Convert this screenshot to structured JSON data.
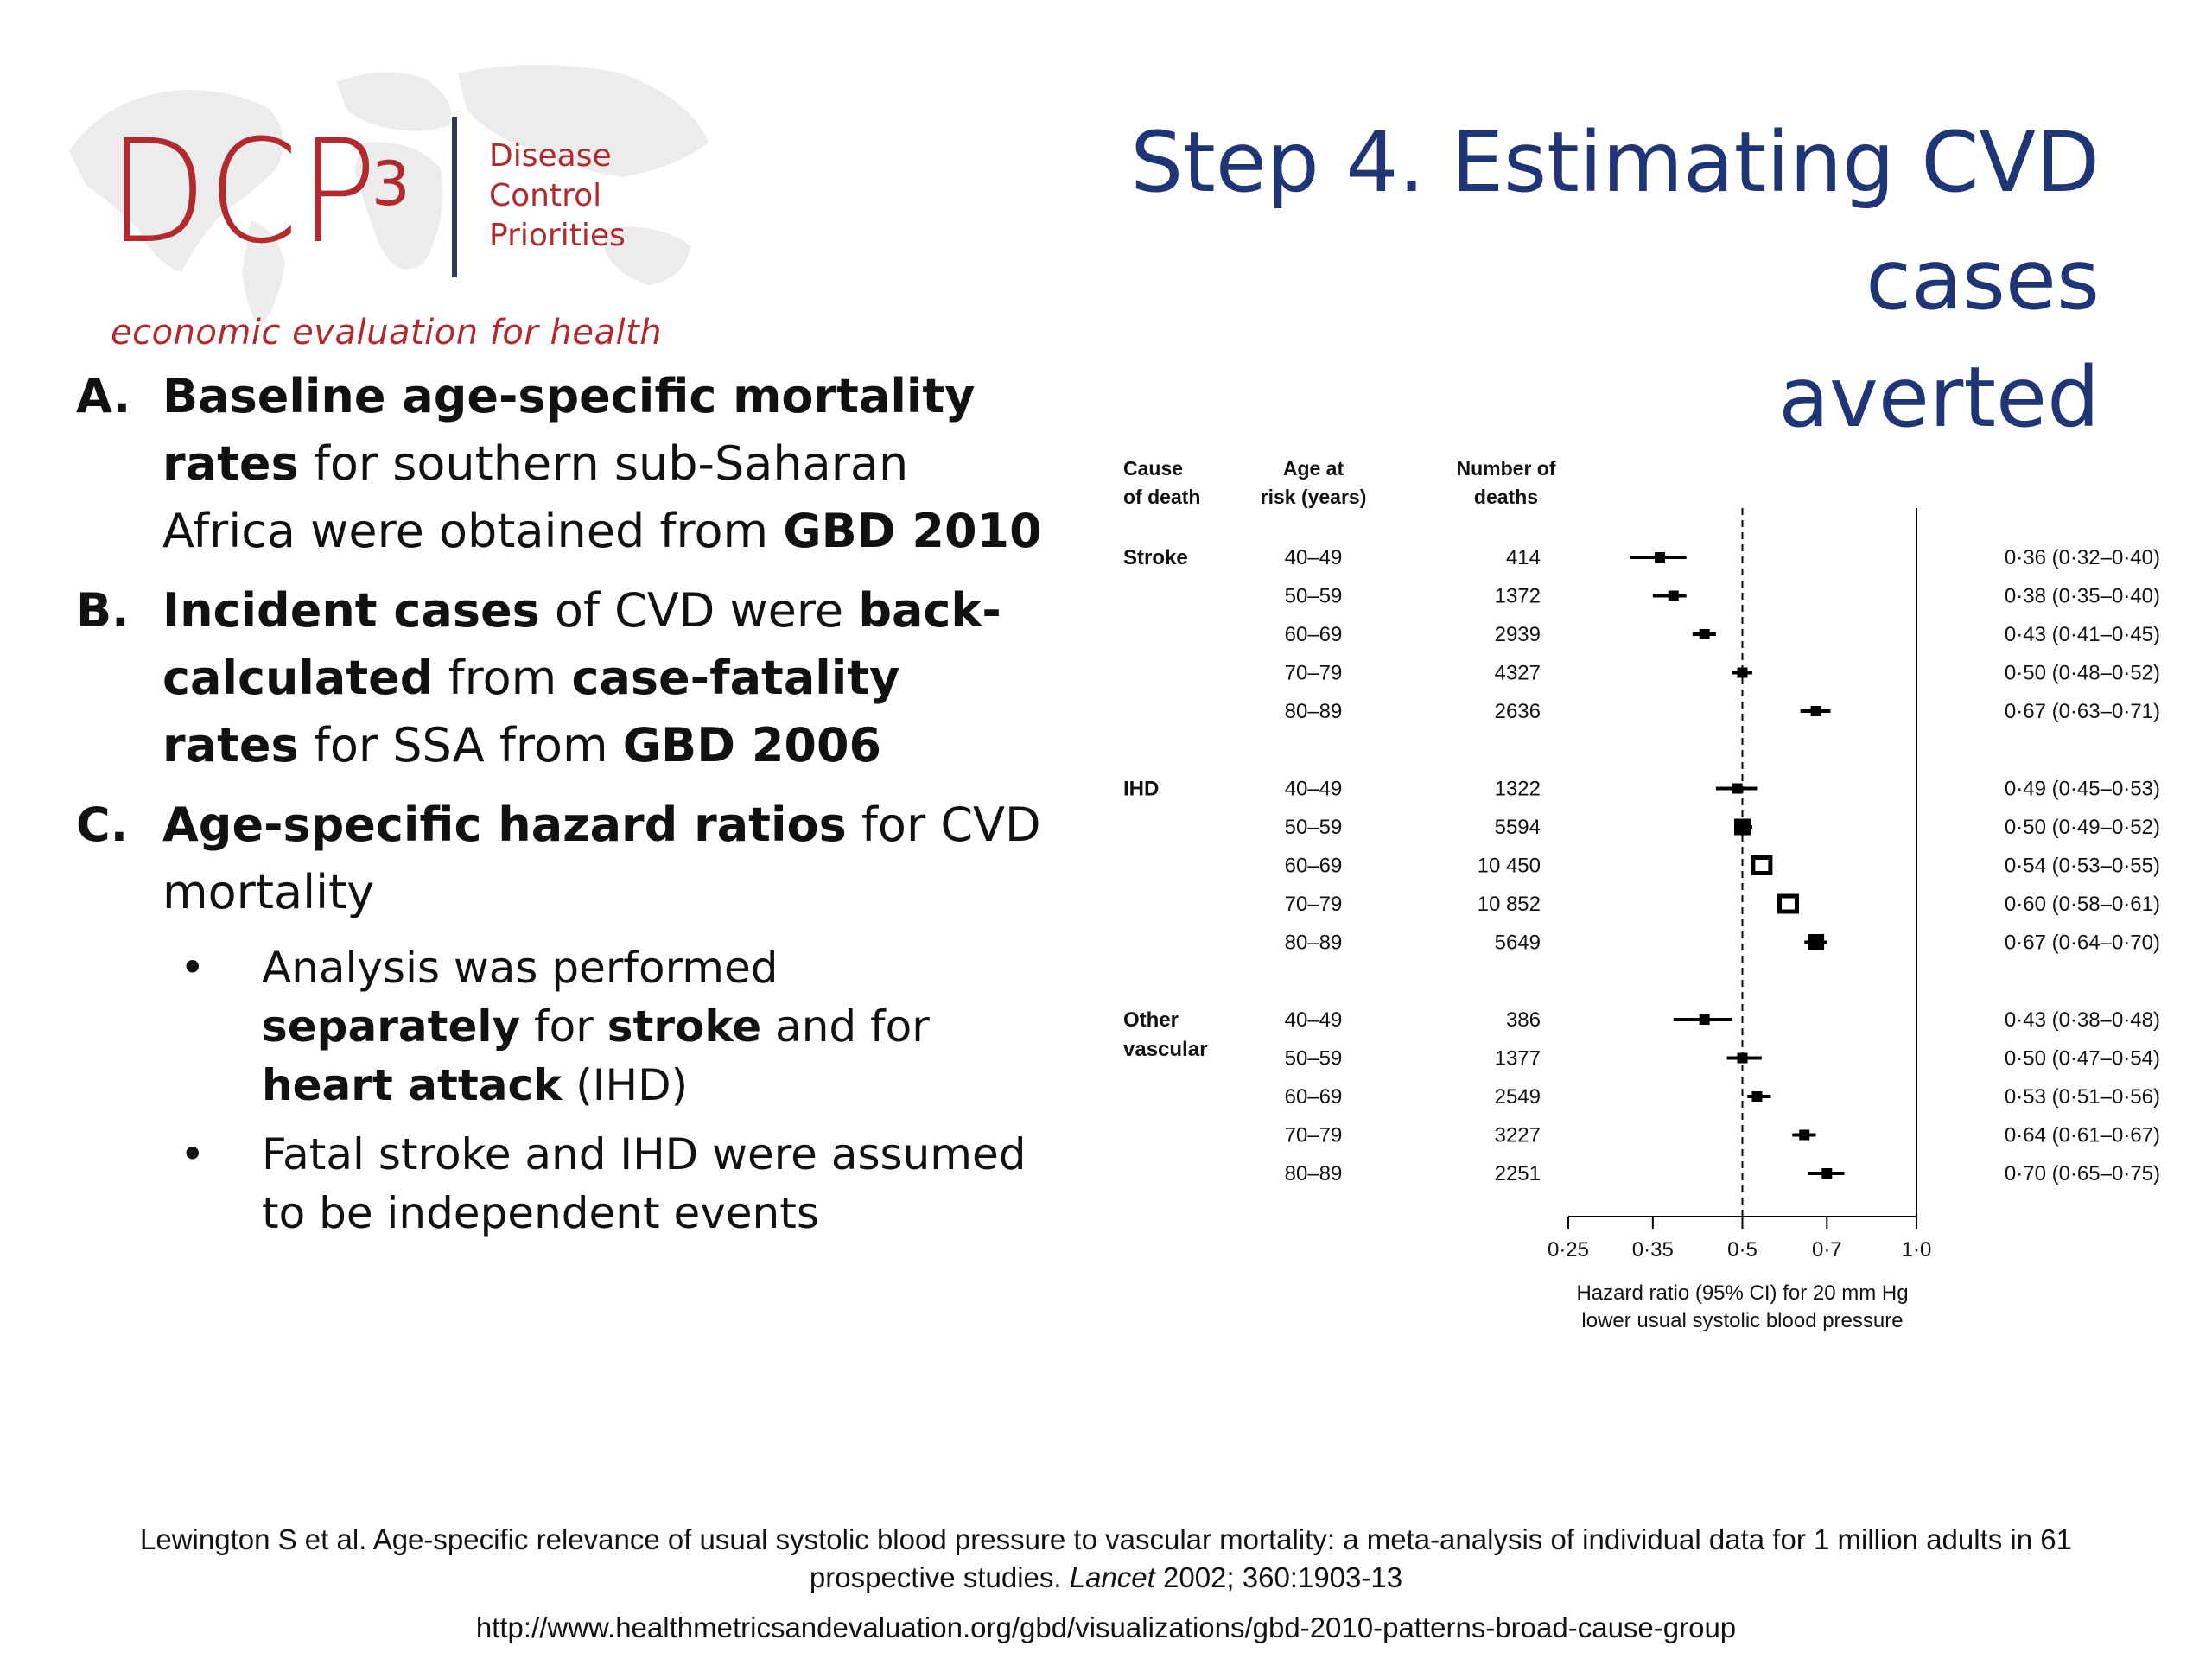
{
  "logo": {
    "brand": "DCP",
    "superscript": "3",
    "words": [
      "Disease",
      "Control",
      "Priorities"
    ],
    "tagline": "economic evaluation for health",
    "brand_color": "#b22a2e",
    "map_color": "#ececec"
  },
  "title": {
    "line1": "Step 4. Estimating CVD cases",
    "line2": "averted",
    "color": "#1f3575"
  },
  "body": {
    "a": {
      "letter": "A.",
      "bold1": "Baseline age-specific mortality rates",
      "text1": " for southern sub-Saharan Africa were obtained from ",
      "bold2": "GBD 2010"
    },
    "b": {
      "letter": "B.",
      "bold1": "Incident cases",
      "text1": " of CVD were ",
      "bold2": "back-calculated",
      "text2": " from ",
      "bold3": "case-fatality rates",
      "text3": " for SSA from ",
      "bold4": "GBD 2006"
    },
    "c": {
      "letter": "C.",
      "bold1": "Age-specific hazard ratios",
      "text1": " for CVD mortality"
    },
    "bullets": [
      {
        "t1": "Analysis was performed ",
        "b1": "separately",
        "t2": " for ",
        "b2": "stroke",
        "t3": " and for ",
        "b3": "heart attack",
        "t4": " (IHD)"
      },
      {
        "t1": "Fatal stroke and IHD were assumed to be independent events"
      }
    ]
  },
  "chart_data": {
    "type": "forest",
    "headers": {
      "cause": [
        "Cause",
        "of death"
      ],
      "age": [
        "Age at",
        "risk (years)"
      ],
      "deaths": [
        "Number of",
        "deaths"
      ]
    },
    "xaxis": {
      "scale": "log",
      "ticks": [
        0.25,
        0.35,
        0.5,
        0.7,
        1.0
      ],
      "tick_labels": [
        "0·25",
        "0·35",
        "0·5",
        "0·7",
        "1·0"
      ],
      "reference_line": 0.5,
      "label": [
        "Hazard ratio (95% CI) for 20 mm Hg",
        "lower usual systolic blood pressure"
      ]
    },
    "groups": [
      {
        "cause": [
          "Stroke"
        ],
        "rows": [
          {
            "age": "40–49",
            "deaths": "414",
            "hr": 0.36,
            "lo": 0.32,
            "hi": 0.4,
            "label": "0·36 (0·32–0·40)"
          },
          {
            "age": "50–59",
            "deaths": "1372",
            "hr": 0.38,
            "lo": 0.35,
            "hi": 0.4,
            "label": "0·38 (0·35–0·40)"
          },
          {
            "age": "60–69",
            "deaths": "2939",
            "hr": 0.43,
            "lo": 0.41,
            "hi": 0.45,
            "label": "0·43 (0·41–0·45)"
          },
          {
            "age": "70–79",
            "deaths": "4327",
            "hr": 0.5,
            "lo": 0.48,
            "hi": 0.52,
            "label": "0·50 (0·48–0·52)"
          },
          {
            "age": "80–89",
            "deaths": "2636",
            "hr": 0.67,
            "lo": 0.63,
            "hi": 0.71,
            "label": "0·67 (0·63–0·71)"
          }
        ]
      },
      {
        "cause": [
          "IHD"
        ],
        "rows": [
          {
            "age": "40–49",
            "deaths": "1322",
            "hr": 0.49,
            "lo": 0.45,
            "hi": 0.53,
            "label": "0·49 (0·45–0·53)"
          },
          {
            "age": "50–59",
            "deaths": "5594",
            "hr": 0.5,
            "lo": 0.49,
            "hi": 0.52,
            "label": "0·50 (0·49–0·52)"
          },
          {
            "age": "60–69",
            "deaths": "10 450",
            "hr": 0.54,
            "lo": 0.53,
            "hi": 0.55,
            "label": "0·54 (0·53–0·55)",
            "open": true
          },
          {
            "age": "70–79",
            "deaths": "10 852",
            "hr": 0.6,
            "lo": 0.58,
            "hi": 0.61,
            "label": "0·60 (0·58–0·61)",
            "open": true
          },
          {
            "age": "80–89",
            "deaths": "5649",
            "hr": 0.67,
            "lo": 0.64,
            "hi": 0.7,
            "label": "0·67 (0·64–0·70)"
          }
        ]
      },
      {
        "cause": [
          "Other",
          "vascular"
        ],
        "rows": [
          {
            "age": "40–49",
            "deaths": "386",
            "hr": 0.43,
            "lo": 0.38,
            "hi": 0.48,
            "label": "0·43 (0·38–0·48)"
          },
          {
            "age": "50–59",
            "deaths": "1377",
            "hr": 0.5,
            "lo": 0.47,
            "hi": 0.54,
            "label": "0·50 (0·47–0·54)"
          },
          {
            "age": "60–69",
            "deaths": "2549",
            "hr": 0.53,
            "lo": 0.51,
            "hi": 0.56,
            "label": "0·53 (0·51–0·56)"
          },
          {
            "age": "70–79",
            "deaths": "3227",
            "hr": 0.64,
            "lo": 0.61,
            "hi": 0.67,
            "label": "0·64 (0·61–0·67)"
          },
          {
            "age": "80–89",
            "deaths": "2251",
            "hr": 0.7,
            "lo": 0.65,
            "hi": 0.75,
            "label": "0·70 (0·65–0·75)"
          }
        ]
      }
    ]
  },
  "footer": {
    "ref_text": "Lewington S et al. Age-specific relevance of usual systolic blood pressure to vascular mortality: a meta-analysis of individual data for 1 million adults in 61 prospective studies. ",
    "journal": "Lancet",
    "ref_tail": " 2002; 360:1903-13",
    "url": "http://www.healthmetricsandevaluation.org/gbd/visualizations/gbd-2010-patterns-broad-cause-group"
  }
}
